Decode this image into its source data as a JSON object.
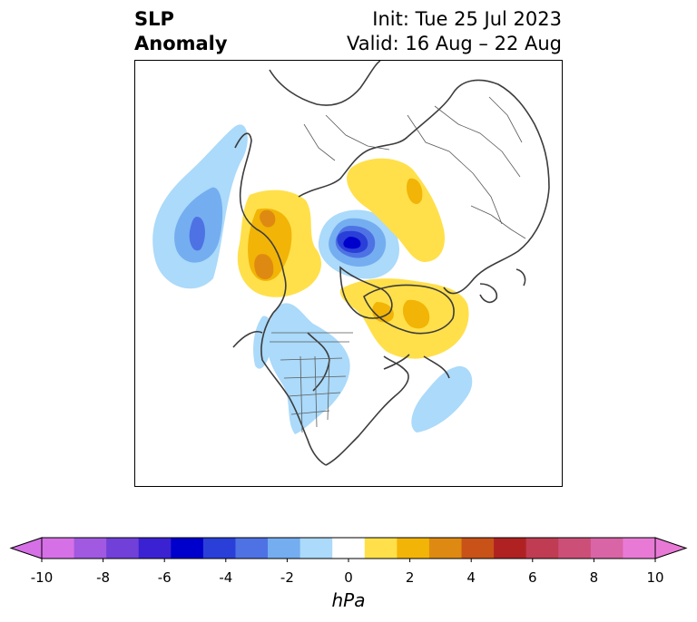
{
  "title": {
    "left_line1": "SLP",
    "left_line2": "Anomaly",
    "right_line1": "Init: Tue 25 Jul 2023",
    "right_line2": "Valid: 16 Aug – 22 Aug"
  },
  "colorbar": {
    "units": "hPa",
    "min": -10,
    "max": 10,
    "ticks": [
      "-10",
      "-8",
      "-6",
      "-4",
      "-2",
      "0",
      "2",
      "4",
      "6",
      "8",
      "10"
    ],
    "levels": [
      -10,
      -9,
      -8,
      -7,
      -6,
      -5,
      -4,
      -3,
      -2,
      -1,
      1,
      2,
      3,
      4,
      5,
      6,
      7,
      8,
      9,
      10
    ],
    "colors": [
      "#d670e6",
      "#a059e0",
      "#7040d8",
      "#3a22d2",
      "#0000cc",
      "#2a3fd8",
      "#4e72e4",
      "#74aef0",
      "#abdafa",
      "#ffffff",
      "#ffe04a",
      "#f2b406",
      "#de8a12",
      "#c85218",
      "#b02222",
      "#c03c52",
      "#cc4f78",
      "#d964a6",
      "#e87ad6"
    ],
    "extend_min_color": "#d670e6",
    "extend_max_color": "#e87ad6"
  }
}
